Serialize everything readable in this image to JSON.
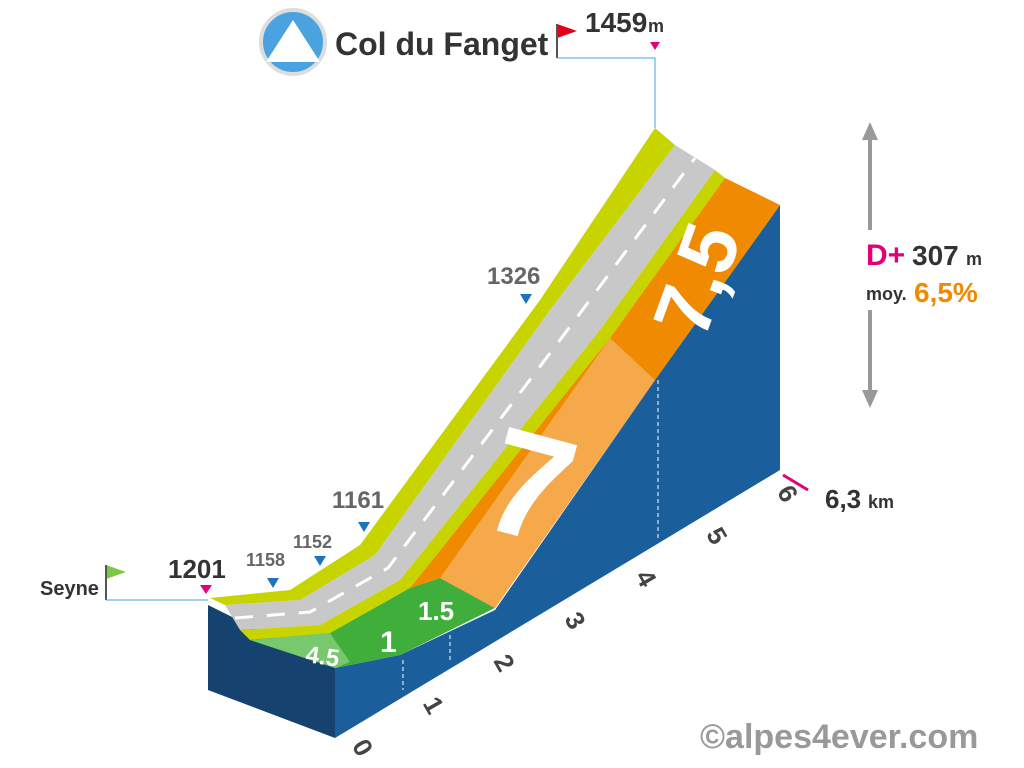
{
  "header": {
    "title": "Col du Fanget",
    "summit_altitude": "1459",
    "summit_unit": "m"
  },
  "start": {
    "name": "Seyne",
    "altitude": "1201"
  },
  "waypoints": [
    "1158",
    "1152",
    "1161",
    "1326"
  ],
  "stats": {
    "dplus_label": "D+",
    "dplus_value": "307",
    "dplus_unit": "m",
    "avg_label": "moy.",
    "avg_value": "6,5%"
  },
  "distance": {
    "value": "6,3",
    "unit": "km"
  },
  "km_markers": [
    "0",
    "1",
    "2",
    "3",
    "4",
    "5",
    "6"
  ],
  "segments": [
    "4.5",
    "1",
    "1.5",
    "7",
    "7,5"
  ],
  "credit": "©alpes4ever.com"
}
